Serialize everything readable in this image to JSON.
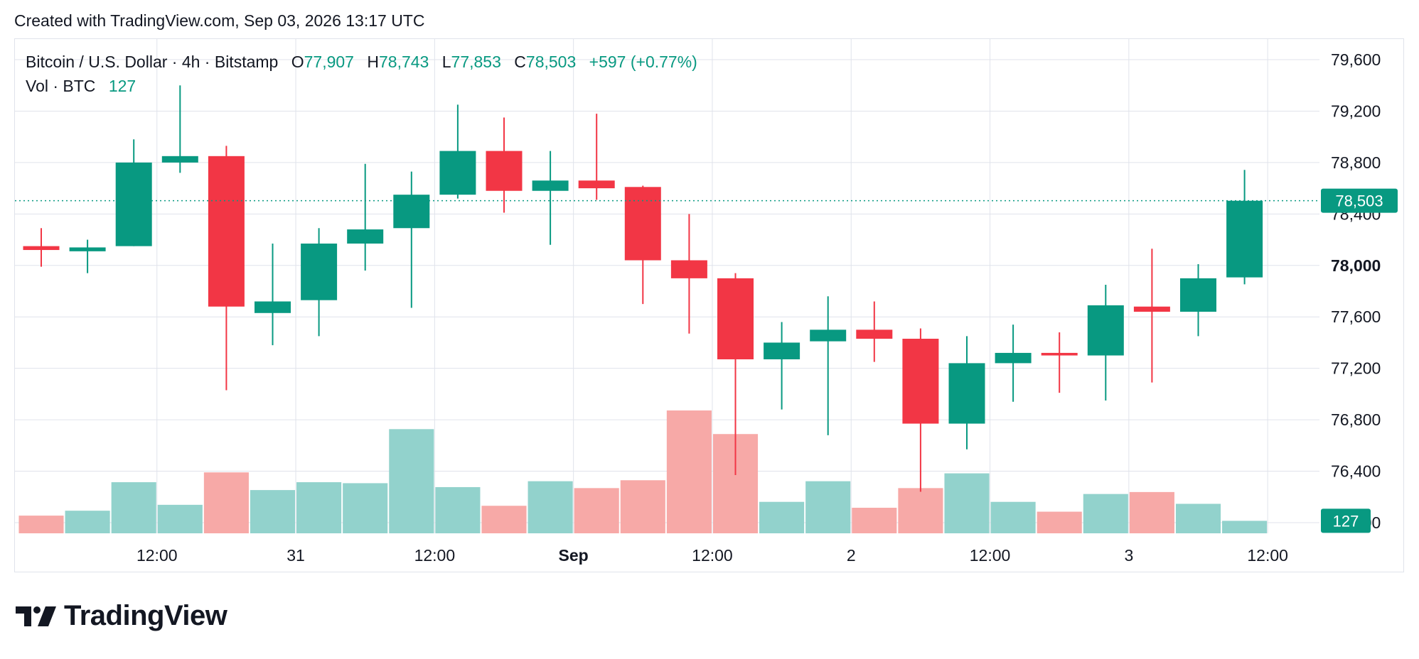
{
  "header": {
    "text": "Created with TradingView.com, Sep 03, 2026 13:17 UTC"
  },
  "legend": {
    "symbol": "Bitcoin / U.S. Dollar · 4h · Bitstamp",
    "o_label": "O",
    "o_value": "77,907",
    "h_label": "H",
    "h_value": "78,743",
    "l_label": "L",
    "l_value": "77,853",
    "c_label": "C",
    "c_value": "78,503",
    "change": "+597 (+0.77%)",
    "vol_label": "Vol · BTC",
    "vol_value": "127"
  },
  "logo": {
    "text": "TradingView"
  },
  "colors": {
    "up": "#089981",
    "down": "#f23645",
    "up_vol": "#92d2cc",
    "down_vol": "#f7a9a7",
    "grid": "#e0e3eb"
  },
  "chart_data": {
    "type": "candlestick",
    "interval": "4h",
    "ylim": [
      75900,
      79800
    ],
    "y_ticks": [
      {
        "value": 79600,
        "label": "79,600",
        "bold": false
      },
      {
        "value": 79200,
        "label": "79,200",
        "bold": false
      },
      {
        "value": 78800,
        "label": "78,800",
        "bold": false
      },
      {
        "value": 78400,
        "label": "78,400",
        "bold": false
      },
      {
        "value": 78000,
        "label": "78,000",
        "bold": true
      },
      {
        "value": 77600,
        "label": "77,600",
        "bold": false
      },
      {
        "value": 77200,
        "label": "77,200",
        "bold": false
      },
      {
        "value": 76800,
        "label": "76,800",
        "bold": false
      },
      {
        "value": 76400,
        "label": "76,400",
        "bold": false
      },
      {
        "value": 76000,
        "label": "76,000",
        "bold": false
      }
    ],
    "x_ticks": [
      {
        "index": 2.5,
        "label": "12:00",
        "bold": false
      },
      {
        "index": 5.5,
        "label": "31",
        "bold": false
      },
      {
        "index": 8.5,
        "label": "12:00",
        "bold": false
      },
      {
        "index": 11.5,
        "label": "Sep",
        "bold": true
      },
      {
        "index": 14.5,
        "label": "12:00",
        "bold": false
      },
      {
        "index": 17.5,
        "label": "2",
        "bold": false
      },
      {
        "index": 20.5,
        "label": "12:00",
        "bold": false
      },
      {
        "index": 23.5,
        "label": "3",
        "bold": false
      },
      {
        "index": 26.5,
        "label": "12:00",
        "bold": false
      }
    ],
    "last_price": {
      "value": 78503,
      "label": "78,503"
    },
    "last_volume": {
      "value": 127,
      "label": "127"
    },
    "candles": [
      {
        "o": 78150,
        "h": 78290,
        "l": 77990,
        "c": 78120
      },
      {
        "o": 78110,
        "h": 78200,
        "l": 77940,
        "c": 78140
      },
      {
        "o": 78150,
        "h": 78980,
        "l": 78150,
        "c": 78800
      },
      {
        "o": 78800,
        "h": 79400,
        "l": 78720,
        "c": 78850
      },
      {
        "o": 78850,
        "h": 78930,
        "l": 77030,
        "c": 77680
      },
      {
        "o": 77630,
        "h": 78170,
        "l": 77380,
        "c": 77720
      },
      {
        "o": 77730,
        "h": 78290,
        "l": 77450,
        "c": 78170
      },
      {
        "o": 78170,
        "h": 78790,
        "l": 77960,
        "c": 78280
      },
      {
        "o": 78290,
        "h": 78730,
        "l": 77670,
        "c": 78550
      },
      {
        "o": 78550,
        "h": 79250,
        "l": 78520,
        "c": 78890
      },
      {
        "o": 78890,
        "h": 79150,
        "l": 78410,
        "c": 78580
      },
      {
        "o": 78580,
        "h": 78890,
        "l": 78160,
        "c": 78660
      },
      {
        "o": 78660,
        "h": 79180,
        "l": 78510,
        "c": 78600
      },
      {
        "o": 78610,
        "h": 78620,
        "l": 77700,
        "c": 78040
      },
      {
        "o": 78040,
        "h": 78400,
        "l": 77470,
        "c": 77900
      },
      {
        "o": 77900,
        "h": 77940,
        "l": 76370,
        "c": 77270
      },
      {
        "o": 77270,
        "h": 77560,
        "l": 76880,
        "c": 77400
      },
      {
        "o": 77410,
        "h": 77760,
        "l": 76680,
        "c": 77500
      },
      {
        "o": 77500,
        "h": 77720,
        "l": 77250,
        "c": 77430
      },
      {
        "o": 77430,
        "h": 77510,
        "l": 76240,
        "c": 76770
      },
      {
        "o": 76770,
        "h": 77450,
        "l": 76570,
        "c": 77240
      },
      {
        "o": 77240,
        "h": 77540,
        "l": 76940,
        "c": 77320
      },
      {
        "o": 77320,
        "h": 77480,
        "l": 77010,
        "c": 77300
      },
      {
        "o": 77300,
        "h": 77850,
        "l": 76950,
        "c": 77690
      },
      {
        "o": 77680,
        "h": 78130,
        "l": 77090,
        "c": 77640
      },
      {
        "o": 77640,
        "h": 78010,
        "l": 77450,
        "c": 77900
      },
      {
        "o": 77907,
        "h": 78743,
        "l": 77853,
        "c": 78503
      }
    ],
    "volumes": [
      {
        "value": 180,
        "up": false
      },
      {
        "value": 230,
        "up": true
      },
      {
        "value": 520,
        "up": true
      },
      {
        "value": 290,
        "up": true
      },
      {
        "value": 620,
        "up": false
      },
      {
        "value": 440,
        "up": true
      },
      {
        "value": 520,
        "up": true
      },
      {
        "value": 510,
        "up": true
      },
      {
        "value": 1060,
        "up": true
      },
      {
        "value": 470,
        "up": true
      },
      {
        "value": 280,
        "up": false
      },
      {
        "value": 530,
        "up": true
      },
      {
        "value": 460,
        "up": false
      },
      {
        "value": 540,
        "up": false
      },
      {
        "value": 1250,
        "up": false
      },
      {
        "value": 1010,
        "up": false
      },
      {
        "value": 320,
        "up": true
      },
      {
        "value": 530,
        "up": true
      },
      {
        "value": 260,
        "up": false
      },
      {
        "value": 460,
        "up": false
      },
      {
        "value": 610,
        "up": true
      },
      {
        "value": 320,
        "up": true
      },
      {
        "value": 220,
        "up": false
      },
      {
        "value": 400,
        "up": true
      },
      {
        "value": 420,
        "up": false
      },
      {
        "value": 300,
        "up": true
      },
      {
        "value": 127,
        "up": true
      }
    ]
  }
}
